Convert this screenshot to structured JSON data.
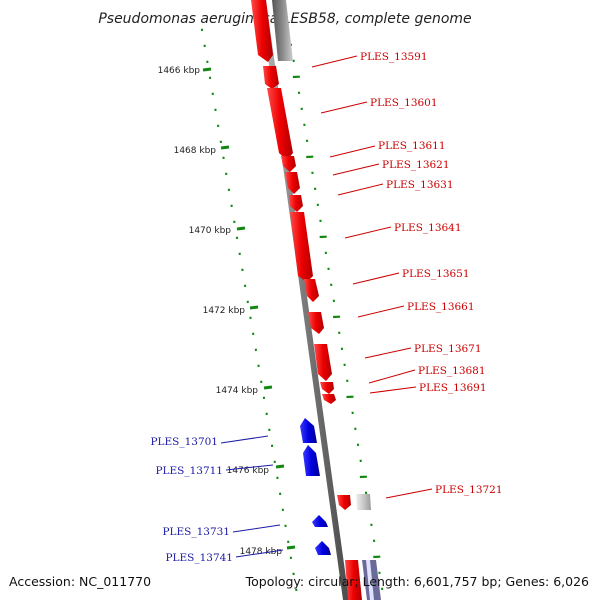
{
  "title": "Pseudomonas aeruginosa LESB58, complete genome",
  "footer": {
    "accession": "Accession: NC_011770",
    "summary": "Topology: circular; Length: 6,601,757 bp; Genes: 6,026"
  },
  "colors": {
    "forward_gene": "#ee0000",
    "reverse_gene": "#0000dd",
    "other_feature": "#9a9a9a",
    "backbone": "#8a8a8a",
    "tick": "#118811",
    "red_label": "#cc0000",
    "blue_label": "#1a1aa8"
  },
  "scale_labels": [
    "1466 kbp",
    "1468 kbp",
    "1470 kbp",
    "1472 kbp",
    "1474 kbp",
    "1476 kbp",
    "1478 kbp"
  ],
  "gene_labels": [
    {
      "text": "PLES_13591",
      "strand": "forward"
    },
    {
      "text": "PLES_13601",
      "strand": "forward"
    },
    {
      "text": "PLES_13611",
      "strand": "forward"
    },
    {
      "text": "PLES_13621",
      "strand": "forward"
    },
    {
      "text": "PLES_13631",
      "strand": "forward"
    },
    {
      "text": "PLES_13641",
      "strand": "forward"
    },
    {
      "text": "PLES_13651",
      "strand": "forward"
    },
    {
      "text": "PLES_13661",
      "strand": "forward"
    },
    {
      "text": "PLES_13671",
      "strand": "forward"
    },
    {
      "text": "PLES_13681",
      "strand": "forward"
    },
    {
      "text": "PLES_13691",
      "strand": "forward"
    },
    {
      "text": "PLES_13701",
      "strand": "reverse"
    },
    {
      "text": "PLES_13711",
      "strand": "reverse"
    },
    {
      "text": "PLES_13721",
      "strand": "forward"
    },
    {
      "text": "PLES_13731",
      "strand": "reverse"
    },
    {
      "text": "PLES_13741",
      "strand": "reverse"
    }
  ]
}
